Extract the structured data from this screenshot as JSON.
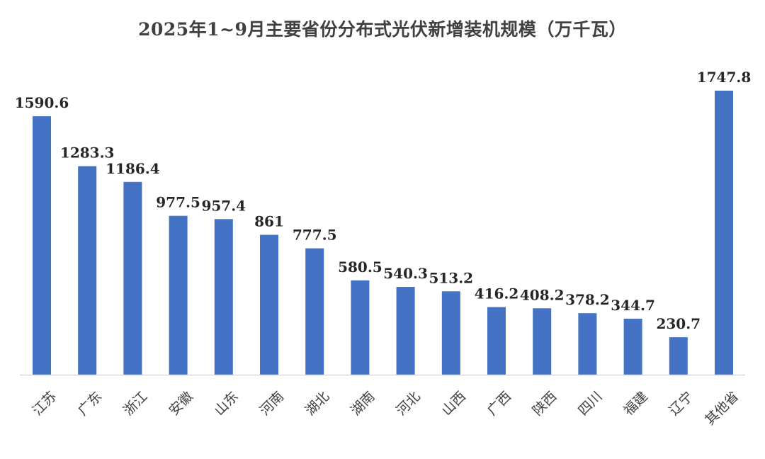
{
  "chart_data": {
    "type": "bar",
    "title": "2025年1~9月主要省份分布式光伏新增装机规模（万千瓦）",
    "xlabel": "",
    "ylabel": "",
    "categories": [
      "江苏",
      "广东",
      "浙江",
      "安徽",
      "山东",
      "河南",
      "湖北",
      "湖南",
      "河北",
      "山西",
      "广西",
      "陕西",
      "四川",
      "福建",
      "辽宁",
      "其他省"
    ],
    "values": [
      1590.6,
      1283.3,
      1186.4,
      977.5,
      957.4,
      861,
      777.5,
      580.5,
      540.3,
      513.2,
      416.2,
      408.2,
      378.2,
      344.7,
      230.7,
      1747.8
    ],
    "value_labels": [
      "1590.6",
      "1283.3",
      "1186.4",
      "977.5",
      "957.4",
      "861",
      "777.5",
      "580.5",
      "540.3",
      "513.2",
      "416.2",
      "408.2",
      "378.2",
      "344.7",
      "230.7",
      "1747.8"
    ],
    "ylim": [
      0,
      1750
    ],
    "grid": false,
    "legend": "none",
    "bar_color": "#4472C4",
    "axis_color": "#D9D9D9"
  }
}
